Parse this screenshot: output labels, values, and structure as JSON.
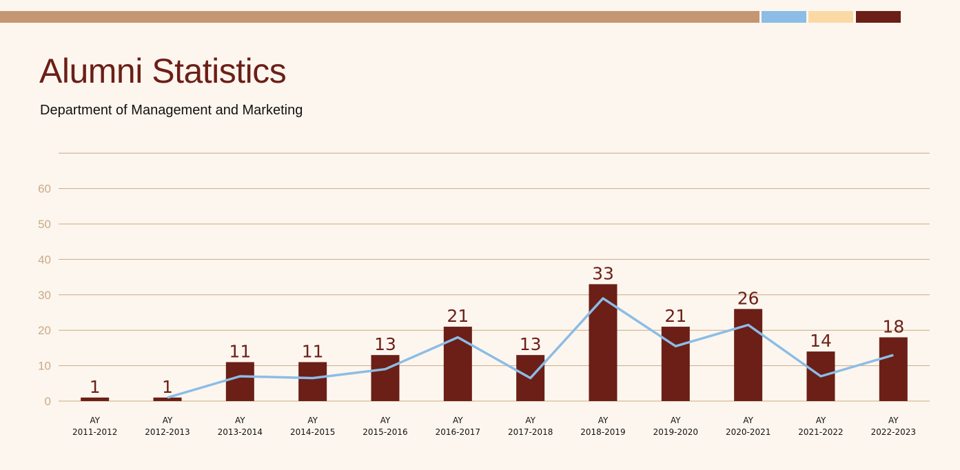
{
  "header": {
    "title": "Alumni Statistics",
    "subtitle": "Department of Management and Marketing",
    "bar_colors": [
      "#c49672",
      "#8bbde6",
      "#fbd9a4",
      "#6b1f17"
    ]
  },
  "colors": {
    "background": "#fdf6ee",
    "bar": "#6b1f17",
    "line": "#8bbde6",
    "grid": "#c9aa86",
    "tick_text": "#c9aa86",
    "value_text": "#6b1f17"
  },
  "chart_data": {
    "type": "bar",
    "categories": [
      [
        "AY",
        "2011-2012"
      ],
      [
        "AY",
        "2012-2013"
      ],
      [
        "AY",
        "2013-2014"
      ],
      [
        "AY",
        "2014-2015"
      ],
      [
        "AY",
        "2015-2016"
      ],
      [
        "AY",
        "2016-2017"
      ],
      [
        "AY",
        "2017-2018"
      ],
      [
        "AY",
        "2018-2019"
      ],
      [
        "AY",
        "2019-2020"
      ],
      [
        "AY",
        "2020-2021"
      ],
      [
        "AY",
        "2021-2022"
      ],
      [
        "AY",
        "2022-2023"
      ]
    ],
    "series": [
      {
        "type": "bar",
        "values": [
          1,
          1,
          11,
          11,
          13,
          21,
          13,
          33,
          21,
          26,
          14,
          18
        ]
      },
      {
        "type": "line",
        "values": [
          null,
          1,
          7,
          6.5,
          9,
          18,
          6.5,
          29,
          15.5,
          21.5,
          7,
          13
        ]
      }
    ],
    "value_labels": [
      "1",
      "1",
      "11",
      "11",
      "13",
      "21",
      "13",
      "33",
      "21",
      "26",
      "14",
      "18"
    ],
    "yticks": [
      0,
      10,
      20,
      30,
      40,
      50,
      60
    ],
    "ylim": [
      0,
      70
    ],
    "grid": true,
    "legend": "none"
  }
}
